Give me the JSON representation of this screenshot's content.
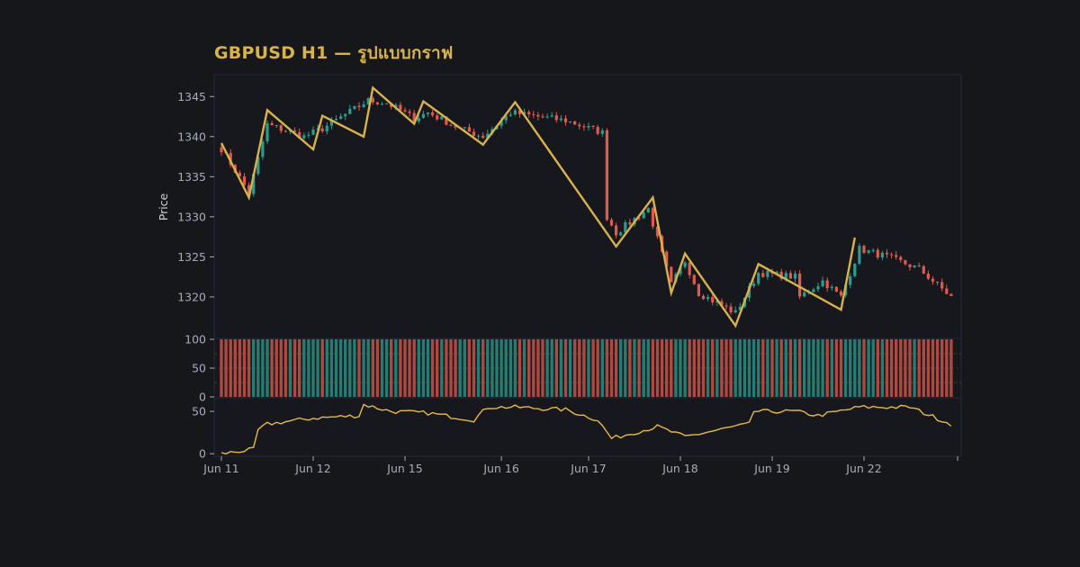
{
  "chart_data": {
    "type": "candlestick",
    "title": "GBPUSD H1 — รูปแบบกราฟ",
    "ylabel": "Price",
    "colors": {
      "up": "#2a9d8f",
      "down": "#e05a4e",
      "zigzag": "#d8b24a",
      "line": "#e8b84a",
      "background": "#16171b",
      "panel": "#17181d",
      "text": "#a7acb8"
    },
    "x_tick_labels": [
      "Jun 11",
      "Jun 12",
      "Jun 15",
      "Jun 16",
      "Jun 17",
      "Jun 18",
      "Jun 19",
      "Jun 22"
    ],
    "price_panel": {
      "ylim": [
        1315.5,
        1347.5
      ],
      "y_ticks": [
        1320,
        1325,
        1330,
        1335,
        1340,
        1345
      ],
      "bars": 160,
      "zigzag": [
        {
          "bar": 0,
          "price": 1339.2
        },
        {
          "bar": 6,
          "price": 1332.4
        },
        {
          "bar": 10,
          "price": 1343.3
        },
        {
          "bar": 20,
          "price": 1338.4
        },
        {
          "bar": 22,
          "price": 1342.6
        },
        {
          "bar": 31,
          "price": 1340.0
        },
        {
          "bar": 33,
          "price": 1346.1
        },
        {
          "bar": 42,
          "price": 1341.6
        },
        {
          "bar": 44,
          "price": 1344.4
        },
        {
          "bar": 57,
          "price": 1339.0
        },
        {
          "bar": 64,
          "price": 1344.3
        },
        {
          "bar": 86,
          "price": 1326.3
        },
        {
          "bar": 94,
          "price": 1332.4
        },
        {
          "bar": 98,
          "price": 1320.5
        },
        {
          "bar": 101,
          "price": 1325.4
        },
        {
          "bar": 112,
          "price": 1316.4
        },
        {
          "bar": 117,
          "price": 1324.1
        },
        {
          "bar": 135,
          "price": 1318.4
        },
        {
          "bar": 138,
          "price": 1327.4
        }
      ],
      "close_anchors": [
        {
          "bar": 0,
          "price": 1338.5
        },
        {
          "bar": 6,
          "price": 1333.0
        },
        {
          "bar": 10,
          "price": 1341.5
        },
        {
          "bar": 18,
          "price": 1340.0
        },
        {
          "bar": 22,
          "price": 1341.0
        },
        {
          "bar": 32,
          "price": 1344.5
        },
        {
          "bar": 36,
          "price": 1344.2
        },
        {
          "bar": 42,
          "price": 1342.3
        },
        {
          "bar": 45,
          "price": 1343.0
        },
        {
          "bar": 52,
          "price": 1341.0
        },
        {
          "bar": 57,
          "price": 1340.0
        },
        {
          "bar": 63,
          "price": 1343.0
        },
        {
          "bar": 75,
          "price": 1342.0
        },
        {
          "bar": 83,
          "price": 1340.5
        },
        {
          "bar": 84,
          "price": 1330.0
        },
        {
          "bar": 86,
          "price": 1328.0
        },
        {
          "bar": 93,
          "price": 1331.0
        },
        {
          "bar": 98,
          "price": 1321.5
        },
        {
          "bar": 101,
          "price": 1324.5
        },
        {
          "bar": 104,
          "price": 1320.5
        },
        {
          "bar": 112,
          "price": 1318.0
        },
        {
          "bar": 117,
          "price": 1323.0
        },
        {
          "bar": 125,
          "price": 1322.5
        },
        {
          "bar": 126,
          "price": 1320.0
        },
        {
          "bar": 131,
          "price": 1322.0
        },
        {
          "bar": 135,
          "price": 1320.0
        },
        {
          "bar": 139,
          "price": 1326.0
        },
        {
          "bar": 145,
          "price": 1325.0
        },
        {
          "bar": 152,
          "price": 1323.5
        },
        {
          "bar": 159,
          "price": 1320.0
        }
      ]
    },
    "volume_panel": {
      "ylim": [
        0,
        100
      ],
      "y_ticks": [
        0,
        50,
        100
      ],
      "y_tick_labels": [
        "0",
        "50",
        "100"
      ]
    },
    "oscillator_panel": {
      "ylim": [
        -2,
        65
      ],
      "y_ticks": [
        0,
        50
      ],
      "y_tick_labels": [
        "0",
        "50"
      ],
      "anchors": [
        {
          "bar": 0,
          "value": 0
        },
        {
          "bar": 4,
          "value": 3
        },
        {
          "bar": 7,
          "value": 5
        },
        {
          "bar": 8,
          "value": 28
        },
        {
          "bar": 10,
          "value": 35
        },
        {
          "bar": 20,
          "value": 42
        },
        {
          "bar": 30,
          "value": 45
        },
        {
          "bar": 31,
          "value": 58
        },
        {
          "bar": 37,
          "value": 50
        },
        {
          "bar": 45,
          "value": 48
        },
        {
          "bar": 55,
          "value": 40
        },
        {
          "bar": 58,
          "value": 55
        },
        {
          "bar": 64,
          "value": 55
        },
        {
          "bar": 75,
          "value": 52
        },
        {
          "bar": 82,
          "value": 40
        },
        {
          "bar": 85,
          "value": 18
        },
        {
          "bar": 90,
          "value": 25
        },
        {
          "bar": 95,
          "value": 32
        },
        {
          "bar": 101,
          "value": 20
        },
        {
          "bar": 110,
          "value": 30
        },
        {
          "bar": 115,
          "value": 35
        },
        {
          "bar": 116,
          "value": 50
        },
        {
          "bar": 125,
          "value": 50
        },
        {
          "bar": 130,
          "value": 45
        },
        {
          "bar": 139,
          "value": 55
        },
        {
          "bar": 150,
          "value": 55
        },
        {
          "bar": 159,
          "value": 35
        }
      ]
    }
  }
}
